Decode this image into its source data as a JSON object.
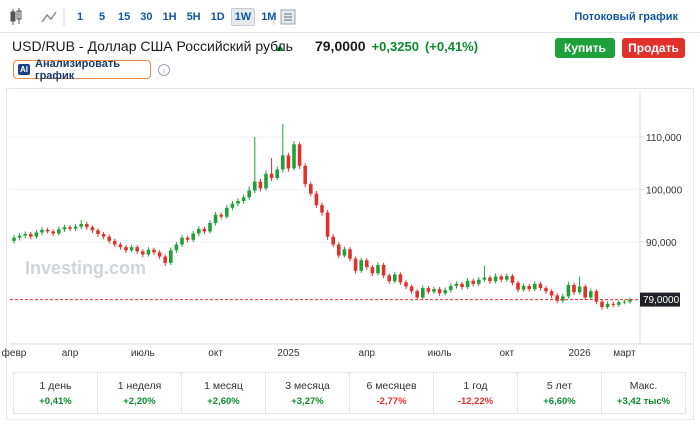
{
  "toolbar": {
    "intervals": [
      {
        "label": "1",
        "selected": false
      },
      {
        "label": "5",
        "selected": false
      },
      {
        "label": "15",
        "selected": false
      },
      {
        "label": "30",
        "selected": false
      },
      {
        "label": "1H",
        "selected": false
      },
      {
        "label": "5H",
        "selected": false
      },
      {
        "label": "1D",
        "selected": false
      },
      {
        "label": "1W",
        "selected": true
      },
      {
        "label": "1M",
        "selected": false
      }
    ],
    "streaming_link": "Потоковый график"
  },
  "header": {
    "title": "USD/RUB - Доллар США Российский рубль",
    "price": "79,0000",
    "change": "+0,3250",
    "change_pct": "(+0,41%)"
  },
  "buttons": {
    "buy": "Купить",
    "sell": "Продать",
    "ai_badge": "AI",
    "analyze": "Анализировать график"
  },
  "chart_data": {
    "type": "candlestick",
    "watermark": "Investing.com",
    "categories": [
      "февр",
      null,
      null,
      null,
      null,
      null,
      null,
      null,
      null,
      null,
      "апр",
      null,
      null,
      null,
      null,
      null,
      null,
      null,
      null,
      null,
      null,
      null,
      null,
      "июль",
      null,
      null,
      null,
      null,
      null,
      null,
      null,
      null,
      null,
      null,
      null,
      null,
      "окт",
      null,
      null,
      null,
      null,
      null,
      null,
      null,
      null,
      null,
      null,
      null,
      null,
      "2025",
      null,
      null,
      null,
      null,
      null,
      null,
      null,
      null,
      null,
      null,
      null,
      null,
      null,
      "апр",
      null,
      null,
      null,
      null,
      null,
      null,
      null,
      null,
      null,
      null,
      null,
      null,
      "июль",
      null,
      null,
      null,
      null,
      null,
      null,
      null,
      null,
      null,
      null,
      null,
      "окт",
      null,
      null,
      null,
      null,
      null,
      null,
      null,
      null,
      null,
      null,
      null,
      null,
      "2026",
      null,
      null,
      null,
      null,
      null,
      null,
      null,
      "март",
      null
    ],
    "open": [
      90.2,
      90.8,
      91.2,
      91.5,
      91.0,
      91.8,
      92.3,
      92.0,
      91.6,
      92.4,
      92.8,
      92.5,
      92.9,
      93.4,
      92.8,
      92.2,
      91.5,
      91.0,
      90.2,
      89.5,
      89.0,
      88.4,
      89.0,
      88.2,
      87.6,
      88.5,
      88.0,
      87.2,
      86.0,
      88.4,
      89.5,
      90.8,
      90.4,
      91.6,
      92.5,
      92.0,
      93.6,
      95.2,
      94.8,
      96.5,
      97.3,
      97.8,
      98.5,
      99.8,
      101.5,
      100.2,
      103.0,
      102.2,
      103.8,
      106.5,
      104.0,
      108.6,
      104.5,
      101.0,
      99.2,
      97.0,
      95.6,
      91.0,
      89.5,
      87.4,
      88.6,
      86.8,
      84.5,
      86.5,
      85.2,
      84.0,
      85.6,
      83.6,
      82.5,
      83.8,
      82.3,
      81.5,
      80.6,
      79.4,
      81.2,
      80.5,
      81.0,
      80.2,
      80.8,
      81.6,
      82.0,
      81.4,
      82.6,
      82.0,
      82.8,
      83.2,
      82.5,
      83.4,
      82.8,
      83.5,
      82.2,
      80.9,
      81.6,
      81.0,
      82.0,
      81.2,
      80.6,
      79.8,
      78.8,
      79.6,
      81.8,
      80.4,
      81.5,
      79.4,
      80.6,
      78.6,
      77.6,
      78.2,
      78.0,
      78.5,
      78.6
    ],
    "high": [
      91.3,
      91.7,
      92.0,
      91.9,
      92.3,
      92.8,
      92.7,
      92.4,
      92.9,
      93.3,
      93.2,
      93.4,
      94.2,
      93.8,
      93.2,
      92.6,
      91.9,
      91.4,
      90.6,
      89.9,
      89.4,
      89.5,
      89.4,
      88.6,
      89.0,
      88.9,
      88.4,
      87.6,
      88.9,
      90.0,
      91.3,
      91.2,
      92.1,
      93.0,
      92.9,
      94.1,
      95.7,
      95.6,
      97.0,
      97.8,
      98.3,
      99.0,
      100.6,
      110.0,
      102.0,
      103.6,
      106.0,
      104.4,
      112.5,
      107.0,
      109.2,
      109.0,
      105.0,
      101.5,
      99.7,
      97.5,
      96.1,
      91.5,
      90.0,
      89.1,
      89.0,
      87.2,
      87.0,
      86.9,
      85.6,
      86.1,
      86.0,
      84.0,
      84.3,
      84.2,
      82.7,
      81.9,
      81.0,
      81.7,
      81.6,
      81.5,
      81.4,
      81.3,
      82.1,
      82.5,
      82.4,
      83.1,
      83.0,
      83.3,
      85.5,
      83.6,
      84.0,
      83.8,
      84.0,
      83.9,
      82.6,
      82.1,
      82.0,
      82.5,
      82.4,
      81.6,
      81.0,
      80.2,
      80.1,
      82.4,
      82.2,
      83.4,
      81.9,
      81.1,
      81.0,
      79.0,
      78.7,
      78.6,
      78.9,
      79.0,
      79.4
    ],
    "low": [
      89.7,
      90.3,
      90.7,
      90.5,
      90.6,
      91.3,
      91.6,
      91.1,
      91.2,
      91.9,
      92.0,
      92.1,
      92.4,
      92.3,
      91.7,
      91.0,
      90.5,
      89.7,
      89.0,
      88.5,
      87.9,
      88.0,
      87.7,
      87.1,
      87.2,
      87.5,
      86.7,
      85.4,
      85.6,
      87.9,
      89.0,
      89.9,
      90.0,
      91.1,
      91.5,
      91.6,
      93.1,
      94.3,
      94.4,
      96.0,
      96.8,
      97.3,
      98.0,
      99.3,
      99.6,
      99.8,
      101.6,
      101.8,
      103.2,
      103.4,
      103.6,
      103.9,
      100.4,
      98.7,
      96.5,
      95.0,
      90.4,
      89.0,
      86.9,
      87.0,
      86.3,
      84.0,
      84.1,
      84.7,
      83.5,
      83.6,
      83.1,
      82.0,
      82.1,
      81.8,
      81.0,
      80.1,
      78.9,
      79.0,
      80.0,
      80.1,
      79.7,
      79.8,
      80.3,
      81.1,
      80.9,
      81.0,
      81.5,
      81.6,
      82.3,
      82.0,
      82.1,
      82.3,
      82.4,
      81.7,
      80.4,
      80.5,
      80.5,
      80.6,
      80.7,
      80.1,
      79.3,
      78.3,
      78.4,
      79.2,
      79.9,
      80.0,
      78.9,
      79.0,
      78.1,
      77.1,
      77.2,
      77.5,
      77.6,
      78.1,
      78.2
    ],
    "close": [
      90.8,
      91.2,
      91.5,
      91.0,
      91.8,
      92.3,
      92.0,
      91.6,
      92.4,
      92.8,
      92.5,
      92.9,
      93.4,
      92.8,
      92.2,
      91.5,
      91.0,
      90.2,
      89.5,
      89.0,
      88.4,
      89.0,
      88.2,
      87.6,
      88.5,
      88.0,
      87.2,
      86.0,
      88.4,
      89.5,
      90.8,
      90.4,
      91.6,
      92.5,
      92.0,
      93.6,
      95.2,
      94.8,
      96.5,
      97.3,
      97.8,
      98.5,
      99.8,
      101.5,
      100.2,
      103.0,
      102.2,
      103.8,
      106.5,
      104.0,
      108.6,
      104.5,
      101.0,
      99.2,
      97.0,
      95.6,
      91.0,
      89.5,
      87.4,
      88.6,
      86.8,
      84.5,
      86.5,
      85.2,
      84.0,
      85.6,
      83.6,
      82.5,
      83.8,
      82.3,
      81.5,
      80.6,
      79.4,
      81.2,
      80.5,
      81.0,
      80.2,
      80.8,
      81.6,
      82.0,
      81.4,
      82.6,
      82.0,
      82.8,
      83.2,
      82.5,
      83.4,
      82.8,
      83.5,
      82.2,
      80.9,
      81.6,
      81.0,
      82.0,
      81.2,
      80.6,
      79.8,
      78.8,
      79.6,
      81.8,
      80.4,
      81.5,
      79.4,
      80.6,
      78.6,
      77.6,
      78.2,
      78.0,
      78.5,
      78.6,
      79.0
    ],
    "up_color": "#1ea13a",
    "down_color": "#e0312d",
    "ylim": [
      71.3,
      118
    ],
    "yticks": [
      {
        "value": 90,
        "label": "90,000"
      },
      {
        "value": 100,
        "label": "100,000"
      },
      {
        "value": 110,
        "label": "110,000"
      }
    ],
    "grid": true,
    "last_price": {
      "value": 79,
      "label": "79,0000"
    }
  },
  "performance": [
    {
      "period": "1 день",
      "change": "+0,41%"
    },
    {
      "period": "1 неделя",
      "change": "+2,20%"
    },
    {
      "period": "1 месяц",
      "change": "+2,60%"
    },
    {
      "period": "3 месяца",
      "change": "+3,27%"
    },
    {
      "period": "6 месяцев",
      "change": "-2,77%"
    },
    {
      "period": "1 год",
      "change": "-12,22%"
    },
    {
      "period": "5 лет",
      "change": "+6,60%"
    },
    {
      "period": "Макс.",
      "change": "+3,42 тыс%"
    }
  ]
}
